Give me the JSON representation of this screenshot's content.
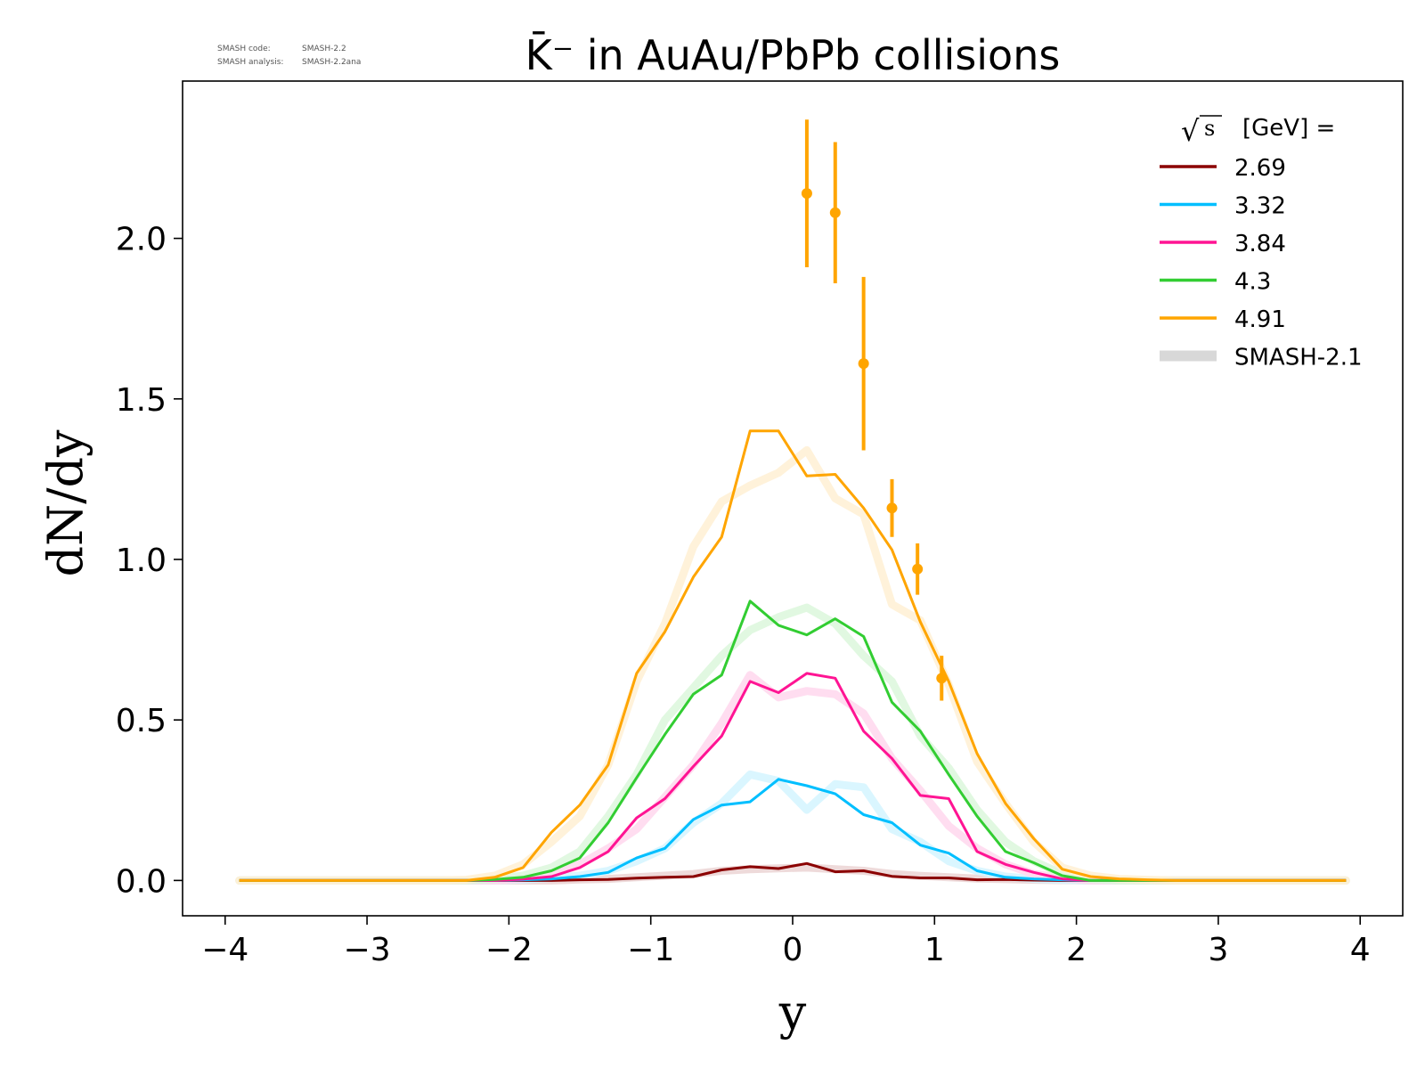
{
  "chart_data": {
    "type": "line",
    "title": "K̄⁻ in AuAu/PbPb collisions",
    "xlabel": "y",
    "ylabel": "dN/dy",
    "xlim": [
      -4.3,
      4.3
    ],
    "ylim": [
      -0.11,
      2.49
    ],
    "xticks": [
      -4,
      -3,
      -2,
      -1,
      0,
      1,
      2,
      3,
      4
    ],
    "xtick_labels": [
      "−4",
      "−3",
      "−2",
      "−1",
      "0",
      "1",
      "2",
      "3",
      "4"
    ],
    "yticks": [
      0.0,
      0.5,
      1.0,
      1.5,
      2.0
    ],
    "ytick_labels": [
      "0.0",
      "0.5",
      "1.0",
      "1.5",
      "2.0"
    ],
    "grid": false,
    "legend_placement": "top-right",
    "legend_title": "√s  [GeV] =",
    "legend_title_parts": {
      "sqrt": "√",
      "s": "s",
      "rest": "[GeV] ="
    },
    "code_info": {
      "code_label": "SMASH code:",
      "code_value": "SMASH-2.2",
      "analysis_label": "SMASH analysis:",
      "analysis_value": "SMASH-2.2ana"
    },
    "x": [
      -3.9,
      -3.7,
      -3.5,
      -3.3,
      -3.1,
      -2.9,
      -2.7,
      -2.5,
      -2.3,
      -2.1,
      -1.9,
      -1.7,
      -1.5,
      -1.3,
      -1.1,
      -0.9,
      -0.7,
      -0.5,
      -0.3,
      -0.1,
      0.1,
      0.3,
      0.5,
      0.7,
      0.9,
      1.1,
      1.3,
      1.5,
      1.7,
      1.9,
      2.1,
      2.3,
      2.5,
      2.7,
      2.9,
      3.1,
      3.3,
      3.5,
      3.7,
      3.9
    ],
    "series": [
      {
        "name": "2.69",
        "color": "#8b0000",
        "values": [
          0,
          0,
          0,
          0,
          0,
          0,
          0,
          0,
          0,
          0,
          0,
          0,
          0.002,
          0.003,
          0.007,
          0.01,
          0.012,
          0.033,
          0.043,
          0.037,
          0.053,
          0.027,
          0.03,
          0.013,
          0.008,
          0.008,
          0.002,
          0.003,
          0.001,
          0,
          0,
          0,
          0,
          0,
          0,
          0,
          0,
          0,
          0,
          0
        ],
        "ref": [
          0,
          0,
          0,
          0,
          0,
          0,
          0,
          0,
          0,
          0,
          0,
          0,
          0.003,
          0.005,
          0.01,
          0.015,
          0.02,
          0.03,
          0.035,
          0.038,
          0.04,
          0.035,
          0.03,
          0.02,
          0.014,
          0.01,
          0.006,
          0.004,
          0.002,
          0.001,
          0,
          0,
          0,
          0,
          0,
          0,
          0,
          0,
          0,
          0
        ]
      },
      {
        "name": "3.32",
        "color": "#00bfff",
        "values": [
          0,
          0,
          0,
          0,
          0,
          0,
          0,
          0,
          0,
          0,
          0.002,
          0.005,
          0.012,
          0.025,
          0.07,
          0.1,
          0.19,
          0.235,
          0.245,
          0.315,
          0.295,
          0.27,
          0.205,
          0.18,
          0.11,
          0.085,
          0.03,
          0.01,
          0.005,
          0.002,
          0,
          0,
          0,
          0,
          0,
          0,
          0,
          0,
          0,
          0
        ],
        "ref": [
          0,
          0,
          0,
          0,
          0,
          0,
          0,
          0,
          0,
          0,
          0.003,
          0.008,
          0.015,
          0.03,
          0.06,
          0.1,
          0.18,
          0.24,
          0.33,
          0.31,
          0.22,
          0.3,
          0.29,
          0.16,
          0.12,
          0.06,
          0.03,
          0.012,
          0.005,
          0.002,
          0,
          0,
          0,
          0,
          0,
          0,
          0,
          0,
          0,
          0
        ]
      },
      {
        "name": "3.84",
        "color": "#ff1493",
        "values": [
          0,
          0,
          0,
          0,
          0,
          0,
          0,
          0,
          0,
          0,
          0.004,
          0.012,
          0.04,
          0.09,
          0.195,
          0.255,
          0.355,
          0.45,
          0.62,
          0.585,
          0.645,
          0.63,
          0.465,
          0.38,
          0.265,
          0.255,
          0.09,
          0.05,
          0.025,
          0.005,
          0,
          0,
          0,
          0,
          0,
          0,
          0,
          0,
          0,
          0
        ],
        "ref": [
          0,
          0,
          0,
          0,
          0,
          0,
          0,
          0,
          0,
          0,
          0.006,
          0.02,
          0.05,
          0.1,
          0.16,
          0.26,
          0.36,
          0.49,
          0.64,
          0.57,
          0.59,
          0.58,
          0.52,
          0.38,
          0.28,
          0.17,
          0.1,
          0.05,
          0.02,
          0.008,
          0,
          0,
          0,
          0,
          0,
          0,
          0,
          0,
          0,
          0
        ]
      },
      {
        "name": "4.3",
        "color": "#32cd32",
        "values": [
          0,
          0,
          0,
          0,
          0,
          0,
          0,
          0,
          0,
          0.003,
          0.01,
          0.03,
          0.07,
          0.18,
          0.32,
          0.455,
          0.58,
          0.64,
          0.87,
          0.795,
          0.765,
          0.815,
          0.76,
          0.555,
          0.465,
          0.33,
          0.2,
          0.09,
          0.055,
          0.015,
          0,
          0,
          0,
          0,
          0,
          0,
          0,
          0,
          0,
          0
        ],
        "ref": [
          0,
          0,
          0,
          0,
          0,
          0,
          0,
          0,
          0,
          0.005,
          0.015,
          0.04,
          0.09,
          0.2,
          0.33,
          0.5,
          0.6,
          0.7,
          0.78,
          0.82,
          0.85,
          0.8,
          0.7,
          0.62,
          0.45,
          0.35,
          0.22,
          0.12,
          0.06,
          0.02,
          0.005,
          0,
          0,
          0,
          0,
          0,
          0,
          0,
          0,
          0
        ]
      },
      {
        "name": "4.91",
        "color": "#ffa500",
        "values": [
          0,
          0,
          0,
          0,
          0,
          0,
          0,
          0,
          0,
          0.01,
          0.04,
          0.15,
          0.235,
          0.36,
          0.645,
          0.775,
          0.945,
          1.07,
          1.4,
          1.4,
          1.26,
          1.265,
          1.16,
          1.03,
          0.805,
          0.62,
          0.395,
          0.24,
          0.13,
          0.035,
          0.012,
          0.005,
          0.002,
          0,
          0,
          0,
          0,
          0,
          0,
          0
        ],
        "ref": [
          0,
          0,
          0,
          0,
          0,
          0,
          0,
          0,
          0.002,
          0.015,
          0.05,
          0.12,
          0.2,
          0.36,
          0.62,
          0.8,
          1.04,
          1.18,
          1.23,
          1.27,
          1.34,
          1.19,
          1.14,
          0.86,
          0.81,
          0.61,
          0.37,
          0.24,
          0.12,
          0.04,
          0.015,
          0.005,
          0.002,
          0,
          0,
          0,
          0,
          0,
          0,
          0
        ]
      }
    ],
    "reference_label": "SMASH-2.1",
    "reference_color": "#c8c8c8",
    "data_points": {
      "color": "#ffa500",
      "x": [
        0.1,
        0.3,
        0.5,
        0.7,
        0.88,
        1.05
      ],
      "y": [
        2.14,
        2.08,
        1.61,
        1.16,
        0.97,
        0.63
      ],
      "err": [
        0.23,
        0.22,
        0.27,
        0.09,
        0.08,
        0.07
      ]
    }
  }
}
